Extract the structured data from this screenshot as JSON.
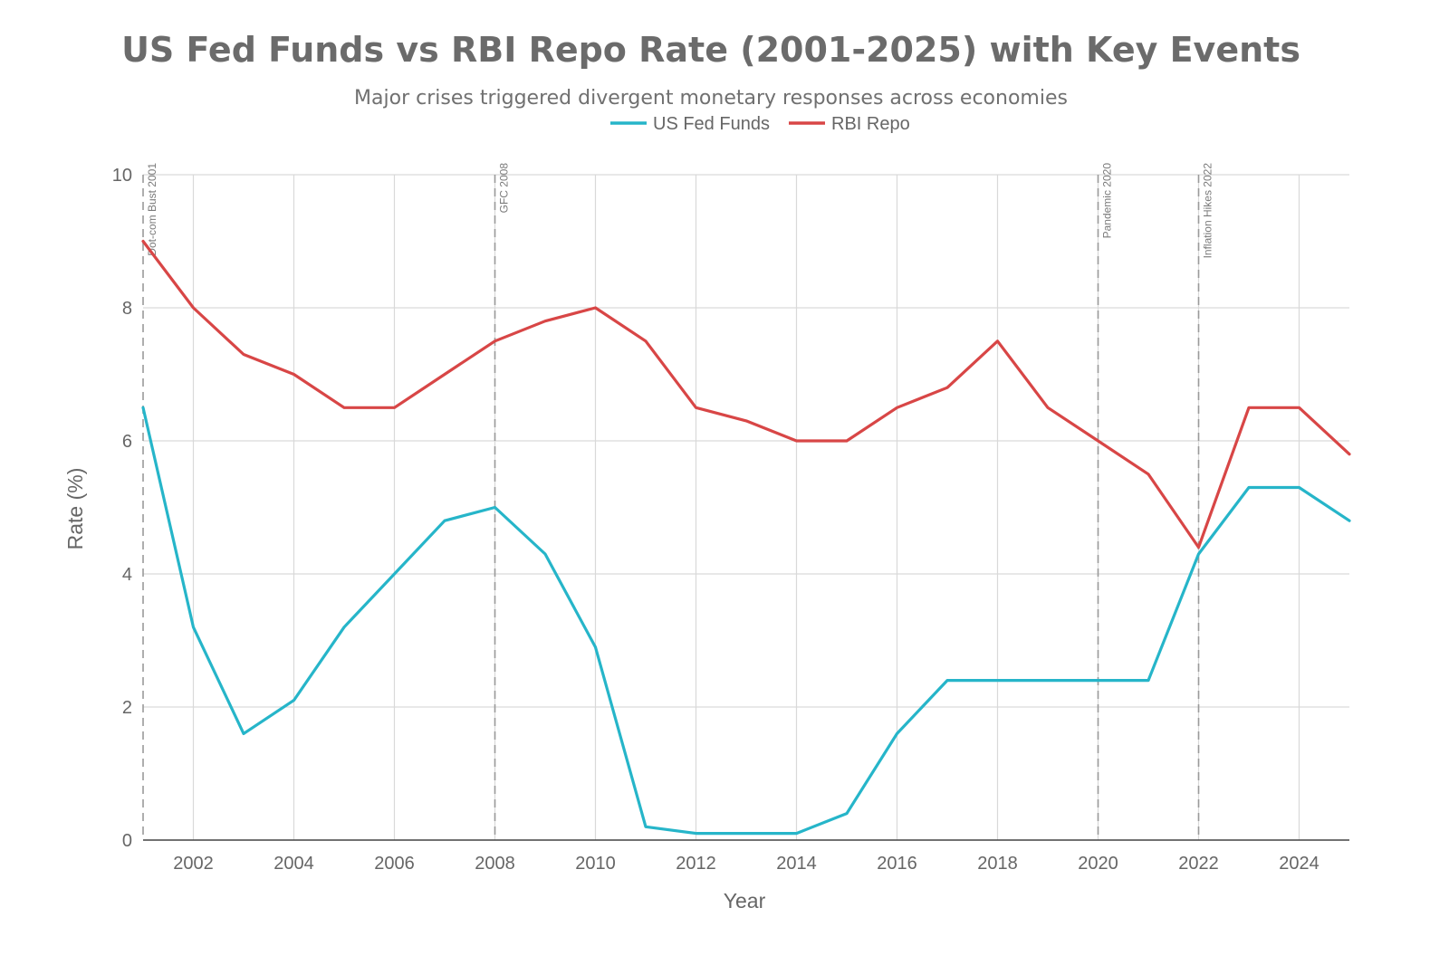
{
  "chart_data": {
    "type": "line",
    "title": "US Fed Funds vs RBI Repo Rate (2001-2025) with Key Events",
    "subtitle": "Major crises triggered divergent monetary responses across economies",
    "xlabel": "Year",
    "ylabel": "Rate (%)",
    "xlim": [
      2001,
      2025
    ],
    "ylim": [
      0,
      10
    ],
    "x_ticks": [
      2002,
      2004,
      2006,
      2008,
      2010,
      2012,
      2014,
      2016,
      2018,
      2020,
      2022,
      2024
    ],
    "y_ticks": [
      0,
      2,
      4,
      6,
      8,
      10
    ],
    "grid": true,
    "legend_position": "top-center",
    "x": [
      2001,
      2002,
      2003,
      2004,
      2005,
      2006,
      2007,
      2008,
      2009,
      2010,
      2011,
      2012,
      2013,
      2014,
      2015,
      2016,
      2017,
      2018,
      2019,
      2020,
      2021,
      2022,
      2023,
      2024,
      2025
    ],
    "series": [
      {
        "name": "US Fed Funds",
        "color": "#26b5c9",
        "values": [
          6.5,
          3.2,
          1.6,
          2.1,
          3.2,
          4.0,
          4.8,
          5.0,
          4.3,
          2.9,
          0.2,
          0.1,
          0.1,
          0.1,
          0.4,
          1.6,
          2.4,
          2.4,
          2.4,
          2.4,
          2.4,
          4.3,
          5.3,
          5.3,
          4.8
        ]
      },
      {
        "name": "RBI Repo",
        "color": "#d84646",
        "values": [
          9.0,
          8.0,
          7.3,
          7.0,
          6.5,
          6.5,
          7.0,
          7.5,
          7.8,
          8.0,
          7.5,
          6.5,
          6.3,
          6.0,
          6.0,
          6.5,
          6.8,
          7.5,
          6.5,
          6.0,
          5.5,
          4.4,
          6.5,
          6.5,
          5.8
        ]
      }
    ],
    "events": [
      {
        "x": 2001,
        "label": "Dot-com Bust 2001"
      },
      {
        "x": 2008,
        "label": "GFC 2008"
      },
      {
        "x": 2020,
        "label": "Pandemic 2020"
      },
      {
        "x": 2022,
        "label": "Inflation Hikes 2022"
      }
    ]
  }
}
